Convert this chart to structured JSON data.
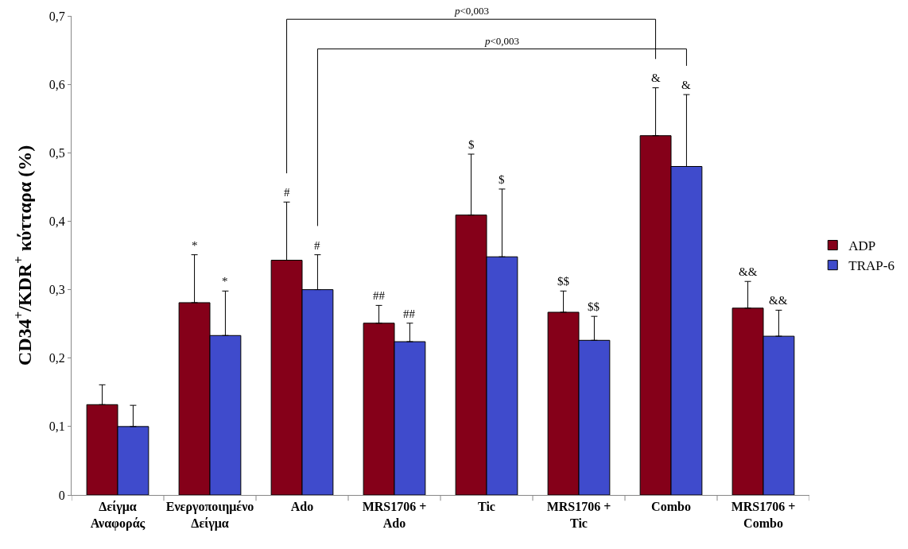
{
  "chart_data": {
    "type": "bar",
    "ylabel": "CD34$^{+}$/KDR$^{+}$ κύτταρα (%)",
    "categories": [
      "Δείγμα\nΑναφοράς",
      "Ενεργοποιημένο\nΔείγμα",
      "Ado",
      "MRS1706 +\nAdo",
      "Tic",
      "MRS1706 +\nTic",
      "Combo",
      "MRS1706 +\nCombo"
    ],
    "series": [
      {
        "name": "ADP",
        "color": "#850019",
        "values": [
          0.132,
          0.281,
          0.343,
          0.251,
          0.409,
          0.267,
          0.525,
          0.273
        ],
        "errors": [
          [
            0.132,
            0.161
          ],
          [
            0.281,
            0.351
          ],
          [
            0.343,
            0.428
          ],
          [
            0.251,
            0.277
          ],
          [
            0.409,
            0.498
          ],
          [
            0.267,
            0.298
          ],
          [
            0.525,
            0.595
          ],
          [
            0.273,
            0.312
          ]
        ]
      },
      {
        "name": "TRAP-6",
        "color": "#3f4bcc",
        "values": [
          0.1,
          0.233,
          0.3,
          0.224,
          0.348,
          0.226,
          0.48,
          0.232
        ],
        "errors": [
          [
            0.1,
            0.131
          ],
          [
            0.233,
            0.298
          ],
          [
            0.3,
            0.351
          ],
          [
            0.224,
            0.251
          ],
          [
            0.348,
            0.447
          ],
          [
            0.226,
            0.261
          ],
          [
            0.48,
            0.585
          ],
          [
            0.232,
            0.27
          ]
        ]
      }
    ],
    "ylim": [
      0,
      0.7
    ],
    "yticks": [
      0,
      {
        "value": 0.1,
        "label": "0,1"
      },
      {
        "value": 0.2,
        "label": "0,2"
      },
      {
        "value": 0.3,
        "label": "0,3"
      },
      {
        "value": 0.4,
        "label": "0,4"
      },
      {
        "value": 0.5,
        "label": "0,5"
      },
      {
        "value": 0.6,
        "label": "0,6"
      },
      {
        "value": 0.7,
        "label": "0,7"
      }
    ],
    "legend": "right",
    "annotations": [
      "p<0,003",
      "p<0,003",
      "*",
      "*",
      "#",
      "#",
      "##",
      "##",
      "$",
      "$",
      "$$",
      "$$",
      "&",
      "&",
      "&&",
      "&&"
    ]
  }
}
